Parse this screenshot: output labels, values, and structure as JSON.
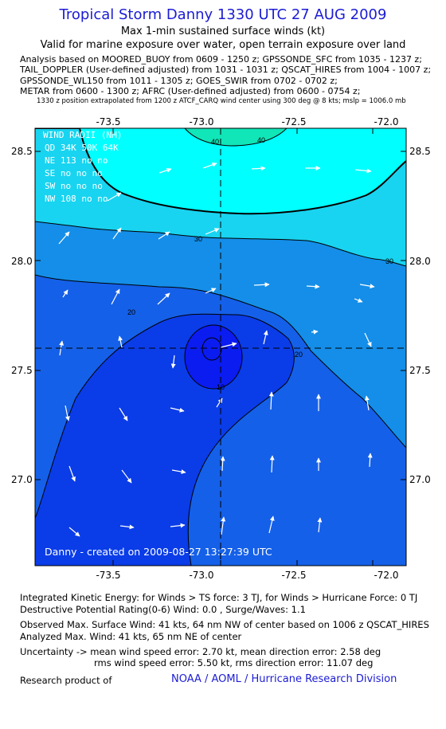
{
  "title": "Tropical Storm Danny 1330 UTC 27 AUG 2009",
  "subtitle1": "Max 1-min sustained surface winds (kt)",
  "subtitle2": "Valid for marine exposure over water, open terrain exposure over land",
  "analysis_lines": [
    "Analysis based on  MOORED_BUOY from 0609 - 1250 z;  GPSSONDE_SFC from 1035 - 1237 z;",
    "TAIL_DOPPLER (User-defined adjusted) from 1031 - 1031 z;  QSCAT_HIRES from 1004 - 1007 z;",
    "GPSSONDE_WL150 from 1011 - 1305 z;  GOES_SWIR from 0702 - 0702 z;",
    "METAR from 0600 - 1300 z;  AFRC (User-defined adjusted) from 0600 - 0754 z;"
  ],
  "position_note": "1330 z position extrapolated from 1200 z ATCF_CARQ wind center using 300 deg @ 8 kts; mslp = 1006.0 mb",
  "map": {
    "x_ticks": [
      "-73.5",
      "-73.0",
      "-72.5",
      "-72.0"
    ],
    "y_ticks": [
      "28.5",
      "28.0",
      "27.5",
      "27.0"
    ],
    "contour_labels": [
      "40",
      "40",
      "30",
      "30",
      "20",
      "20",
      "10"
    ],
    "wind_radii": {
      "title": "WIND RADII (NM)",
      "header": "QD  34K  50K  64K",
      "rows": [
        "NE  113   no   no",
        "SE   no   no   no",
        "SW   no   no   no",
        "NW  108   no   no"
      ]
    },
    "credit": "Danny - created on 2009-08-27  13:27:39 UTC",
    "colors": {
      "lt10": "#1560e8",
      "b10_20": "#0a3ce8",
      "gt10": "#0a1cf0",
      "b20_30": "#148ee8",
      "b30_40": "#18d4f0",
      "gt40": "#10e6b8"
    }
  },
  "footer": {
    "ike": "Integrated Kinetic Energy:  for Winds > TS force: 3 TJ,  for Winds > Hurricane Force: 0 TJ",
    "dpr": "Destructive Potential Rating(0-6)   Wind: 0.0 , Surge/Waves: 1.1",
    "obs": "Observed Max. Surface Wind: 41 kts, 64 nm NW of center based on 1006 z QSCAT_HIRES",
    "ana": "Analyzed Max. Wind: 41 kts, 65 nm NE of center",
    "unc1": "Uncertainty -> mean wind speed error: 2.70 kt,   mean direction error: 2.58 deg",
    "unc2": "rms wind speed error: 5.50 kt,   rms direction error: 11.07 deg",
    "research": "Research product of",
    "link": "NOAA / AOML / Hurricane Research Division"
  }
}
